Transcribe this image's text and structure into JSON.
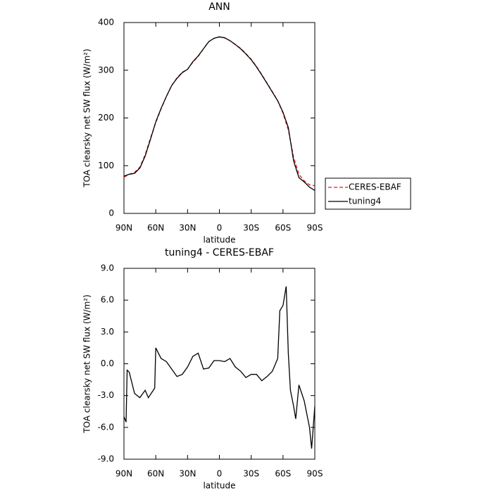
{
  "chart_data": [
    {
      "type": "line",
      "title": "ANN",
      "xlabel": "latitude",
      "ylabel": "TOA clearsky net SW flux (W/m²)",
      "x": [
        90,
        85,
        80,
        75,
        70,
        65,
        60,
        55,
        50,
        45,
        40,
        35,
        30,
        25,
        20,
        15,
        10,
        5,
        0,
        -5,
        -10,
        -15,
        -20,
        -25,
        -30,
        -35,
        -40,
        -45,
        -50,
        -55,
        -60,
        -65,
        -70,
        -75,
        -80,
        -85,
        -90
      ],
      "xlim": [
        90,
        -90
      ],
      "xticks": [
        {
          "value": 90,
          "label": "90N"
        },
        {
          "value": 60,
          "label": "60N"
        },
        {
          "value": 30,
          "label": "30N"
        },
        0,
        {
          "value": -30,
          "label": "30S"
        },
        {
          "value": -60,
          "label": "60S"
        },
        {
          "value": -90,
          "label": "90S"
        }
      ],
      "ylim": [
        0,
        400
      ],
      "yticks": [
        0,
        100,
        200,
        300,
        400
      ],
      "legend": "right",
      "series": [
        {
          "name": "CERES-EBAF",
          "color": "#e8191c",
          "linestyle": "dashed",
          "values": [
            76,
            82,
            86,
            97,
            123,
            158,
            190,
            219,
            245,
            268,
            284,
            296,
            302,
            317,
            329,
            345,
            360,
            367,
            370,
            368,
            362,
            354,
            346,
            335,
            323,
            308,
            291,
            273,
            255,
            236,
            210,
            175,
            118,
            82,
            68,
            60,
            58
          ]
        },
        {
          "name": "tuning4",
          "color": "#000000",
          "linestyle": "solid",
          "values": [
            78,
            82,
            84,
            95,
            120,
            155,
            192,
            220,
            245,
            268,
            283,
            295,
            302,
            318,
            330,
            345,
            360,
            367,
            370,
            368,
            362,
            354,
            345,
            334,
            322,
            307,
            290,
            272,
            254,
            236,
            212,
            180,
            110,
            75,
            66,
            55,
            48
          ]
        }
      ]
    },
    {
      "type": "line",
      "title": "tuning4 - CERES-EBAF",
      "xlabel": "latitude",
      "ylabel": "TOA clearsky net SW flux (W/m²)",
      "x": [
        90,
        88,
        87,
        85,
        80,
        75,
        70,
        67,
        63,
        61,
        60,
        55,
        50,
        45,
        40,
        35,
        30,
        25,
        20,
        15,
        10,
        5,
        0,
        -5,
        -10,
        -15,
        -20,
        -25,
        -30,
        -35,
        -40,
        -45,
        -50,
        -55,
        -57,
        -60,
        -63,
        -65,
        -67,
        -70,
        -72,
        -75,
        -80,
        -85,
        -87,
        -90
      ],
      "values": [
        -5.0,
        -5.5,
        -0.6,
        -0.8,
        -2.8,
        -3.2,
        -2.5,
        -3.2,
        -2.6,
        -2.3,
        1.5,
        0.5,
        0.2,
        -0.5,
        -1.2,
        -1.0,
        -0.3,
        0.7,
        1.0,
        -0.5,
        -0.4,
        0.3,
        0.3,
        0.2,
        0.5,
        -0.3,
        -0.7,
        -1.3,
        -1.0,
        -1.0,
        -1.6,
        -1.2,
        -0.7,
        0.5,
        5.0,
        5.5,
        7.3,
        1.0,
        -2.5,
        -4.0,
        -5.2,
        -2.0,
        -3.5,
        -6.0,
        -8.0,
        -4.0
      ],
      "color": "#000000",
      "xlim": [
        90,
        -90
      ],
      "xticks": [
        {
          "value": 90,
          "label": "90N"
        },
        {
          "value": 60,
          "label": "60N"
        },
        {
          "value": 30,
          "label": "30N"
        },
        0,
        {
          "value": -30,
          "label": "30S"
        },
        {
          "value": -60,
          "label": "60S"
        },
        {
          "value": -90,
          "label": "90S"
        }
      ],
      "ylim": [
        -9,
        9
      ],
      "yticks": [
        {
          "value": -9,
          "label": "-9.0"
        },
        {
          "value": -6,
          "label": "-6.0"
        },
        {
          "value": -3,
          "label": "-3.0"
        },
        {
          "value": 0,
          "label": "0.0"
        },
        {
          "value": 3,
          "label": "3.0"
        },
        {
          "value": 6,
          "label": "6.0"
        },
        {
          "value": 9,
          "label": "9.0"
        }
      ]
    }
  ]
}
